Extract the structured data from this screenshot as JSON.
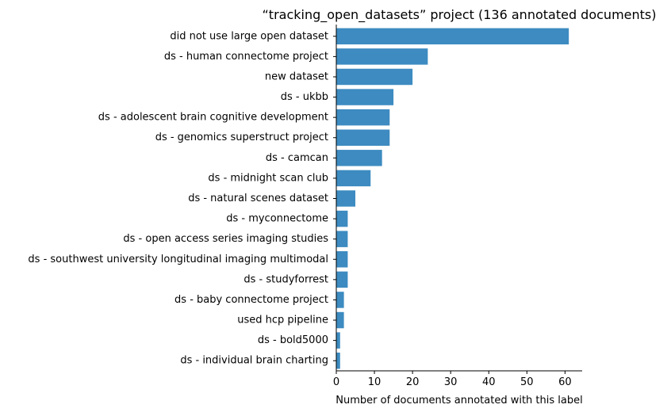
{
  "chart_data": {
    "type": "bar",
    "orientation": "horizontal",
    "title": "“tracking_open_datasets” project (136 annotated documents)",
    "xlabel": "Number of documents annotated with this label",
    "ylabel": "",
    "xlim": [
      0,
      64.5
    ],
    "xticks": [
      0,
      10,
      20,
      30,
      40,
      50,
      60
    ],
    "grid": false,
    "bar_color": "#3d8bc1",
    "categories": [
      "did not use large open dataset",
      "ds - human connectome project",
      "new dataset",
      "ds - ukbb",
      "ds - adolescent brain cognitive development",
      "ds - genomics superstruct project",
      "ds - camcan",
      "ds - midnight scan club",
      "ds - natural scenes dataset",
      "ds - myconnectome",
      "ds - open access series imaging studies",
      "ds - southwest university longitudinal imaging multimodal",
      "ds - studyforrest",
      "ds - baby connectome project",
      "used hcp pipeline",
      "ds - bold5000",
      "ds - individual brain charting"
    ],
    "values": [
      61,
      24,
      20,
      15,
      14,
      14,
      12,
      9,
      5,
      3,
      3,
      3,
      3,
      2,
      2,
      1,
      1
    ]
  }
}
